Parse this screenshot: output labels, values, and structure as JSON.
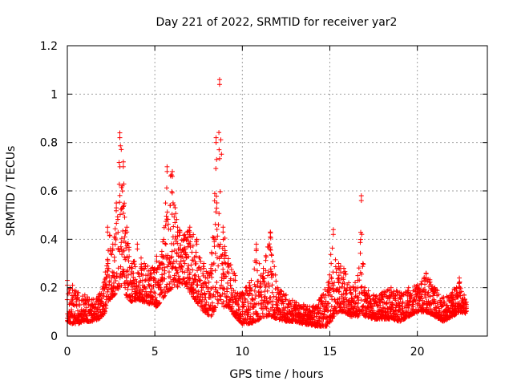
{
  "chart_data": {
    "type": "scatter",
    "title": "Day 221 of 2022, SRMTID for receiver yar2",
    "xlabel": "GPS time / hours",
    "ylabel": "SRMTID / TECUs",
    "xlim": [
      0,
      24
    ],
    "ylim": [
      0,
      1.2
    ],
    "xticks": [
      0,
      5,
      10,
      15,
      20
    ],
    "xtick_labels": [
      "0",
      "5",
      "10",
      "15",
      "20"
    ],
    "yticks": [
      0,
      0.2,
      0.4,
      0.6,
      0.8,
      1.0,
      1.2
    ],
    "ytick_labels": [
      "0",
      "0.2",
      "0.4",
      "0.6",
      "0.8",
      "1",
      "1.2"
    ],
    "grid": true,
    "marker": "+",
    "color": "#ff0000",
    "series": [
      {
        "name": "yar2",
        "envelope": [
          [
            0.0,
            0.06,
            0.23
          ],
          [
            0.3,
            0.05,
            0.21
          ],
          [
            0.6,
            0.05,
            0.18
          ],
          [
            1.0,
            0.06,
            0.17
          ],
          [
            1.4,
            0.06,
            0.15
          ],
          [
            1.8,
            0.07,
            0.17
          ],
          [
            2.1,
            0.09,
            0.22
          ],
          [
            2.3,
            0.14,
            0.45
          ],
          [
            2.6,
            0.16,
            0.38
          ],
          [
            2.8,
            0.18,
            0.55
          ],
          [
            3.0,
            0.2,
            0.84
          ],
          [
            3.2,
            0.22,
            0.72
          ],
          [
            3.4,
            0.16,
            0.45
          ],
          [
            3.7,
            0.14,
            0.3
          ],
          [
            4.0,
            0.15,
            0.38
          ],
          [
            4.4,
            0.14,
            0.3
          ],
          [
            4.8,
            0.13,
            0.28
          ],
          [
            5.1,
            0.12,
            0.33
          ],
          [
            5.4,
            0.15,
            0.35
          ],
          [
            5.7,
            0.18,
            0.7
          ],
          [
            6.0,
            0.2,
            0.68
          ],
          [
            6.3,
            0.2,
            0.45
          ],
          [
            6.7,
            0.22,
            0.42
          ],
          [
            7.0,
            0.18,
            0.45
          ],
          [
            7.4,
            0.14,
            0.4
          ],
          [
            7.8,
            0.1,
            0.3
          ],
          [
            8.2,
            0.08,
            0.28
          ],
          [
            8.5,
            0.12,
            0.82
          ],
          [
            8.7,
            0.15,
            1.06
          ],
          [
            8.9,
            0.12,
            0.45
          ],
          [
            9.2,
            0.12,
            0.32
          ],
          [
            9.6,
            0.08,
            0.25
          ],
          [
            10.0,
            0.05,
            0.18
          ],
          [
            10.4,
            0.05,
            0.22
          ],
          [
            10.8,
            0.06,
            0.38
          ],
          [
            11.2,
            0.08,
            0.28
          ],
          [
            11.6,
            0.08,
            0.43
          ],
          [
            12.0,
            0.07,
            0.2
          ],
          [
            12.5,
            0.06,
            0.17
          ],
          [
            13.0,
            0.06,
            0.14
          ],
          [
            13.5,
            0.05,
            0.13
          ],
          [
            14.0,
            0.04,
            0.12
          ],
          [
            14.5,
            0.04,
            0.16
          ],
          [
            14.9,
            0.04,
            0.22
          ],
          [
            15.2,
            0.08,
            0.44
          ],
          [
            15.5,
            0.1,
            0.3
          ],
          [
            15.8,
            0.1,
            0.28
          ],
          [
            16.2,
            0.08,
            0.2
          ],
          [
            16.6,
            0.08,
            0.25
          ],
          [
            16.8,
            0.1,
            0.58
          ],
          [
            17.0,
            0.08,
            0.2
          ],
          [
            17.5,
            0.07,
            0.17
          ],
          [
            18.0,
            0.07,
            0.18
          ],
          [
            18.5,
            0.07,
            0.2
          ],
          [
            19.0,
            0.06,
            0.18
          ],
          [
            19.5,
            0.08,
            0.2
          ],
          [
            20.0,
            0.1,
            0.21
          ],
          [
            20.5,
            0.1,
            0.26
          ],
          [
            21.0,
            0.08,
            0.2
          ],
          [
            21.5,
            0.06,
            0.16
          ],
          [
            22.0,
            0.08,
            0.18
          ],
          [
            22.4,
            0.1,
            0.24
          ],
          [
            22.8,
            0.09,
            0.14
          ]
        ]
      }
    ]
  }
}
